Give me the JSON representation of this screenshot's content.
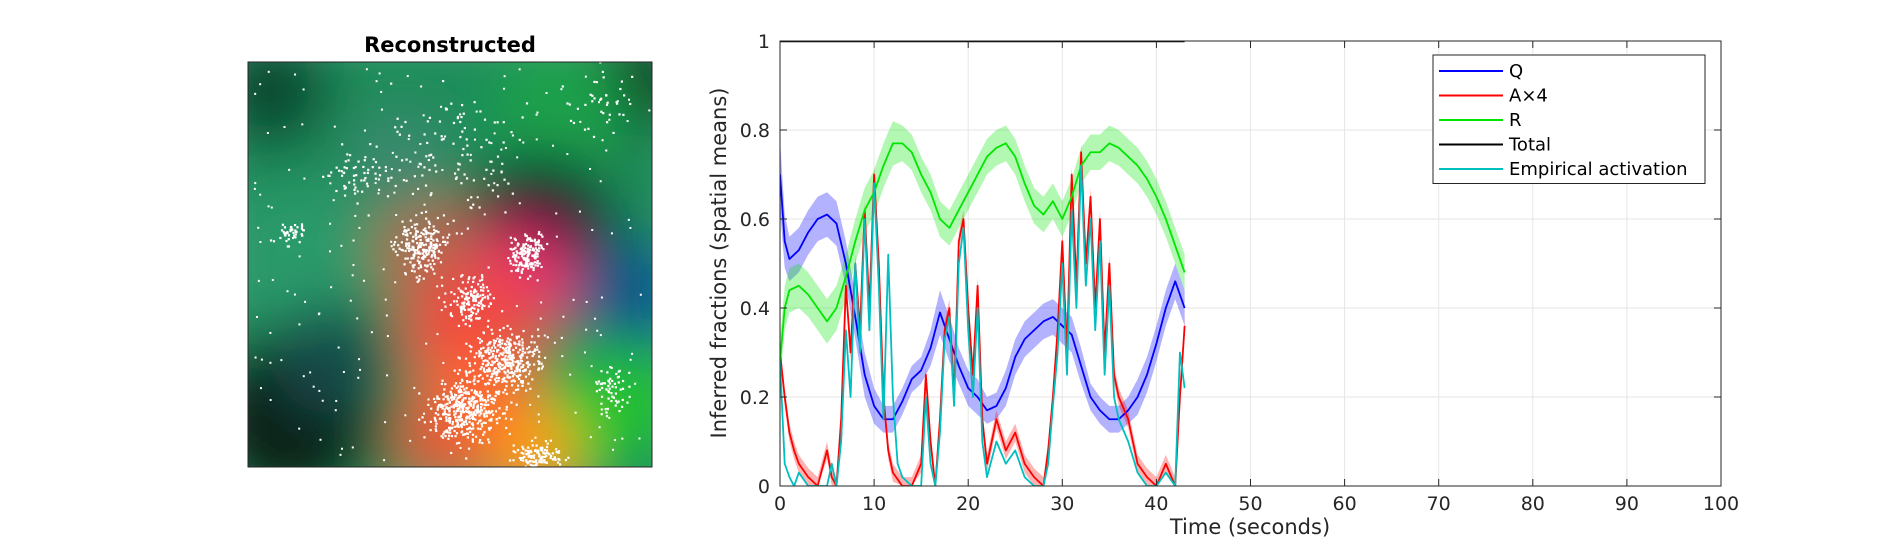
{
  "panel_left": {
    "title": "Reconstructed"
  },
  "chart_data": {
    "type": "line",
    "title": "",
    "xlabel": "Time (seconds)",
    "ylabel": "Inferred fractions (spatial means)",
    "xlim": [
      0,
      100
    ],
    "ylim": [
      0,
      1
    ],
    "xticks": [
      "0",
      "10",
      "20",
      "30",
      "40",
      "50",
      "60",
      "70",
      "80",
      "90",
      "100"
    ],
    "yticks": [
      "0",
      "0.2",
      "0.4",
      "0.6",
      "0.8",
      "1"
    ],
    "grid": true,
    "legend_position": "top-right",
    "series": [
      {
        "name": "Q",
        "color": "#0000ff",
        "band": true,
        "x": [
          0,
          0.5,
          1,
          2,
          3,
          4,
          5,
          6,
          7,
          8,
          9,
          10,
          11,
          12,
          13,
          14,
          15,
          16,
          17,
          18,
          19,
          20,
          21,
          22,
          23,
          24,
          25,
          26,
          27,
          28,
          29,
          30,
          31,
          32,
          33,
          34,
          35,
          36,
          37,
          38,
          39,
          40,
          41,
          42,
          43
        ],
        "y": [
          0.7,
          0.55,
          0.51,
          0.53,
          0.57,
          0.6,
          0.61,
          0.59,
          0.5,
          0.38,
          0.25,
          0.18,
          0.15,
          0.15,
          0.19,
          0.24,
          0.26,
          0.31,
          0.39,
          0.33,
          0.27,
          0.22,
          0.2,
          0.17,
          0.18,
          0.22,
          0.29,
          0.33,
          0.35,
          0.37,
          0.38,
          0.36,
          0.34,
          0.27,
          0.2,
          0.17,
          0.15,
          0.15,
          0.17,
          0.2,
          0.25,
          0.32,
          0.4,
          0.46,
          0.4
        ],
        "band_width": [
          0.08,
          0.06,
          0.05,
          0.05,
          0.05,
          0.05,
          0.05,
          0.05,
          0.05,
          0.05,
          0.05,
          0.04,
          0.03,
          0.03,
          0.03,
          0.03,
          0.03,
          0.04,
          0.05,
          0.05,
          0.04,
          0.04,
          0.04,
          0.03,
          0.03,
          0.04,
          0.04,
          0.04,
          0.04,
          0.04,
          0.04,
          0.04,
          0.04,
          0.04,
          0.03,
          0.03,
          0.03,
          0.03,
          0.03,
          0.04,
          0.04,
          0.04,
          0.04,
          0.04,
          0.04
        ]
      },
      {
        "name": "A×4",
        "color": "#ff0000",
        "band": true,
        "x": [
          0,
          0.5,
          1,
          1.5,
          2,
          3,
          4,
          5,
          5.5,
          6,
          6.5,
          7,
          7.5,
          8,
          8.5,
          9,
          9.5,
          10,
          10.5,
          11,
          11.5,
          12,
          13,
          14,
          15,
          15.5,
          16,
          16.5,
          17,
          17.5,
          18,
          18.5,
          19,
          19.5,
          20,
          20.5,
          21,
          21.5,
          22,
          23,
          24,
          25,
          26,
          27,
          28,
          28.5,
          29,
          29.5,
          30,
          30.5,
          31,
          31.5,
          32,
          32.5,
          33,
          33.5,
          34,
          34.5,
          35,
          35.5,
          36,
          37,
          38,
          39,
          40,
          41,
          42,
          42.5,
          43
        ],
        "y": [
          0.3,
          0.2,
          0.12,
          0.08,
          0.05,
          0.02,
          0.0,
          0.08,
          0.02,
          0.0,
          0.15,
          0.45,
          0.3,
          0.5,
          0.35,
          0.62,
          0.4,
          0.7,
          0.5,
          0.2,
          0.08,
          0.03,
          0.0,
          0.0,
          0.05,
          0.25,
          0.1,
          0.0,
          0.15,
          0.35,
          0.4,
          0.2,
          0.55,
          0.6,
          0.4,
          0.25,
          0.45,
          0.15,
          0.05,
          0.15,
          0.08,
          0.12,
          0.05,
          0.02,
          0.0,
          0.08,
          0.2,
          0.35,
          0.55,
          0.3,
          0.7,
          0.45,
          0.75,
          0.5,
          0.65,
          0.4,
          0.6,
          0.3,
          0.5,
          0.25,
          0.2,
          0.15,
          0.05,
          0.02,
          0.0,
          0.05,
          0.0,
          0.2,
          0.36
        ],
        "band_width": [
          0.02,
          0.02,
          0.02,
          0.02,
          0.02,
          0.02,
          0.02,
          0.02,
          0.02,
          0.02,
          0.02,
          0.02,
          0.02,
          0.02,
          0.02,
          0.02,
          0.02,
          0.02,
          0.02,
          0.02,
          0.02,
          0.02,
          0.02,
          0.02,
          0.02,
          0.02,
          0.02,
          0.02,
          0.02,
          0.02,
          0.02,
          0.02,
          0.02,
          0.02,
          0.02,
          0.02,
          0.02,
          0.02,
          0.02,
          0.02,
          0.02,
          0.02,
          0.02,
          0.02,
          0.02,
          0.02,
          0.02,
          0.02,
          0.02,
          0.02,
          0.02,
          0.02,
          0.02,
          0.02,
          0.02,
          0.02,
          0.02,
          0.02,
          0.02,
          0.02,
          0.02,
          0.02,
          0.02,
          0.02,
          0.02,
          0.02,
          0.02,
          0.02,
          0.02
        ]
      },
      {
        "name": "R",
        "color": "#00e600",
        "band": true,
        "x": [
          0,
          0.5,
          1,
          2,
          3,
          4,
          5,
          6,
          7,
          8,
          9,
          10,
          11,
          12,
          13,
          14,
          15,
          16,
          17,
          18,
          19,
          20,
          21,
          22,
          23,
          24,
          25,
          26,
          27,
          28,
          29,
          30,
          31,
          32,
          33,
          34,
          35,
          36,
          37,
          38,
          39,
          40,
          41,
          42,
          43
        ],
        "y": [
          0.28,
          0.4,
          0.44,
          0.45,
          0.43,
          0.4,
          0.37,
          0.4,
          0.47,
          0.55,
          0.62,
          0.66,
          0.72,
          0.77,
          0.77,
          0.75,
          0.7,
          0.66,
          0.6,
          0.58,
          0.62,
          0.66,
          0.7,
          0.74,
          0.76,
          0.77,
          0.74,
          0.68,
          0.63,
          0.61,
          0.64,
          0.6,
          0.65,
          0.72,
          0.75,
          0.75,
          0.77,
          0.76,
          0.74,
          0.72,
          0.69,
          0.65,
          0.6,
          0.54,
          0.48
        ],
        "band_width": [
          0.05,
          0.05,
          0.05,
          0.05,
          0.05,
          0.05,
          0.05,
          0.05,
          0.05,
          0.05,
          0.05,
          0.05,
          0.05,
          0.05,
          0.04,
          0.04,
          0.04,
          0.04,
          0.04,
          0.04,
          0.04,
          0.04,
          0.04,
          0.04,
          0.04,
          0.04,
          0.04,
          0.04,
          0.04,
          0.04,
          0.04,
          0.04,
          0.04,
          0.04,
          0.04,
          0.04,
          0.04,
          0.04,
          0.04,
          0.04,
          0.04,
          0.04,
          0.04,
          0.04,
          0.04
        ]
      },
      {
        "name": "Total",
        "color": "#000000",
        "band": false,
        "x": [
          0,
          43
        ],
        "y": [
          1,
          1
        ]
      },
      {
        "name": "Empirical activation",
        "color": "#00bfbf",
        "band": false,
        "x": [
          0,
          0.5,
          1,
          1.5,
          2,
          3,
          4,
          5,
          5.5,
          6,
          6.5,
          7,
          7.5,
          8,
          8.5,
          9,
          9.5,
          10,
          10.5,
          11,
          11.5,
          12,
          12.5,
          13,
          14,
          15,
          15.5,
          16,
          16.5,
          17,
          17.5,
          18,
          18.5,
          19,
          19.5,
          20,
          20.5,
          21,
          21.5,
          22,
          23,
          24,
          25,
          26,
          27,
          28,
          28.5,
          29,
          29.5,
          30,
          30.5,
          31,
          31.5,
          32,
          32.5,
          33,
          33.5,
          34,
          34.5,
          35,
          35.5,
          36,
          37,
          38,
          39,
          40,
          41,
          42,
          42.5,
          43
        ],
        "y": [
          0.28,
          0.05,
          0.02,
          0.0,
          0.03,
          0.0,
          0.0,
          0.0,
          0.05,
          0.0,
          0.1,
          0.35,
          0.2,
          0.5,
          0.3,
          0.6,
          0.35,
          0.68,
          0.45,
          0.15,
          0.52,
          0.2,
          0.05,
          0.02,
          0.0,
          0.0,
          0.2,
          0.05,
          0.0,
          0.12,
          0.33,
          0.38,
          0.18,
          0.5,
          0.58,
          0.35,
          0.2,
          0.4,
          0.1,
          0.02,
          0.1,
          0.05,
          0.08,
          0.02,
          0.0,
          0.0,
          0.05,
          0.18,
          0.3,
          0.5,
          0.25,
          0.62,
          0.4,
          0.72,
          0.45,
          0.6,
          0.35,
          0.55,
          0.25,
          0.45,
          0.2,
          0.15,
          0.1,
          0.03,
          0.0,
          0.0,
          0.03,
          0.0,
          0.3,
          0.22
        ]
      }
    ]
  }
}
